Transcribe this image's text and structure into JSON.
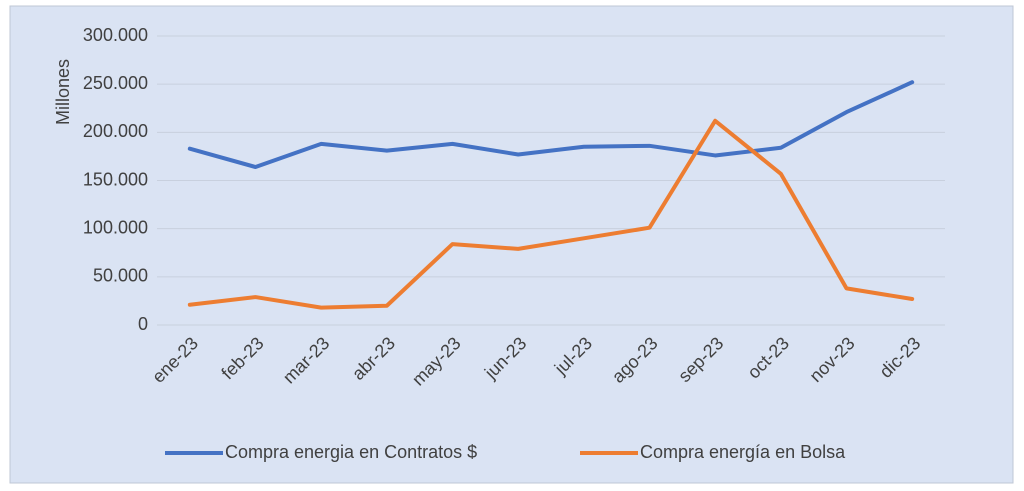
{
  "chart_data": {
    "type": "line",
    "ylabel": "Millones",
    "categories": [
      "ene-23",
      "feb-23",
      "mar-23",
      "abr-23",
      "may-23",
      "jun-23",
      "jul-23",
      "ago-23",
      "sep-23",
      "oct-23",
      "nov-23",
      "dic-23"
    ],
    "series": [
      {
        "name": "Compra energia en Contratos $",
        "color": "#4472c4",
        "values": [
          183000,
          164000,
          188000,
          181000,
          188000,
          177000,
          185000,
          186000,
          176000,
          184000,
          221000,
          252000
        ]
      },
      {
        "name": "Compra energía en Bolsa",
        "color": "#ed7d31",
        "values": [
          21000,
          29000,
          18000,
          20000,
          84000,
          79000,
          90000,
          101000,
          212000,
          157000,
          38000,
          27000
        ]
      }
    ],
    "ylim": [
      0,
      300000
    ],
    "yticks": [
      0,
      {
        "value": 50000,
        "label": "50.000"
      },
      {
        "value": 100000,
        "label": "100.000"
      },
      {
        "value": 150000,
        "label": "150.000"
      },
      {
        "value": 200000,
        "label": "200.000"
      },
      {
        "value": 250000,
        "label": "250.000"
      },
      {
        "value": 300000,
        "label": "300.000"
      }
    ],
    "grid": true,
    "legend": "bottom"
  }
}
